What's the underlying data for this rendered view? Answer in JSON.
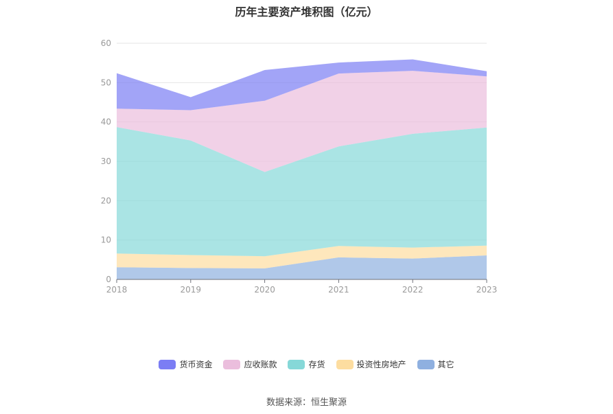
{
  "title": "历年主要资产堆积图（亿元）",
  "source": "数据来源：恒生聚源",
  "chart_data": {
    "type": "area",
    "stacked": true,
    "x": [
      "2018",
      "2019",
      "2020",
      "2021",
      "2022",
      "2023"
    ],
    "ylim": [
      0,
      60
    ],
    "yticks": [
      "0",
      "10",
      "20",
      "30",
      "40",
      "50",
      "60"
    ],
    "grid": true,
    "legend_position": "bottom",
    "series": [
      {
        "name": "其它",
        "color": "#8fb0e0",
        "values": [
          3.1,
          2.9,
          2.8,
          5.6,
          5.3,
          6.1
        ]
      },
      {
        "name": "投资性房地产",
        "color": "#fddda0",
        "values": [
          3.5,
          3.3,
          3.1,
          2.9,
          2.8,
          2.5
        ]
      },
      {
        "name": "存货",
        "color": "#86d8d8",
        "values": [
          32.1,
          29.1,
          21.4,
          25.3,
          28.9,
          30.0
        ]
      },
      {
        "name": "应收账款",
        "color": "#ebbedd",
        "values": [
          4.7,
          7.7,
          18.1,
          18.5,
          16.0,
          13.0
        ]
      },
      {
        "name": "货币资金",
        "color": "#7b7df4",
        "values": [
          9.0,
          3.3,
          7.8,
          2.8,
          2.9,
          1.3
        ]
      }
    ]
  }
}
